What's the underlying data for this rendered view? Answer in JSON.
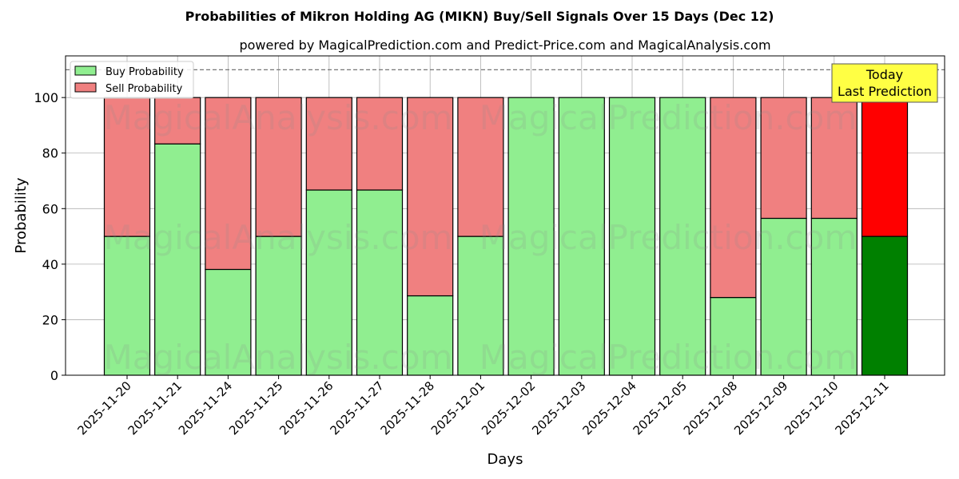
{
  "chart_data": {
    "type": "bar",
    "stacked": true,
    "title": "Probabilities of Mikron Holding AG (MIKN) Buy/Sell Signals Over 15 Days (Dec 12)",
    "subtitle": "powered by MagicalPrediction.com and Predict-Price.com and MagicalAnalysis.com",
    "xlabel": "Days",
    "ylabel": "Probability",
    "ylim": [
      0,
      115
    ],
    "yticks": [
      0,
      20,
      40,
      60,
      80,
      100
    ],
    "grid": true,
    "legend_position": "top-left",
    "reference_line": 110,
    "categories": [
      "2025-11-20",
      "2025-11-21",
      "2025-11-24",
      "2025-11-25",
      "2025-11-26",
      "2025-11-27",
      "2025-11-28",
      "2025-12-01",
      "2025-12-02",
      "2025-12-03",
      "2025-12-04",
      "2025-12-05",
      "2025-12-08",
      "2025-12-09",
      "2025-12-10",
      "2025-12-11"
    ],
    "series": [
      {
        "name": "Buy Probability",
        "color": "#90ee90",
        "values": [
          50,
          83.3,
          38.1,
          50,
          66.7,
          66.7,
          28.6,
          50,
          100,
          100,
          100,
          100,
          28,
          56.5,
          56.5,
          50
        ]
      },
      {
        "name": "Sell Probability",
        "color": "#f08080",
        "values": [
          50,
          16.7,
          61.9,
          50,
          33.3,
          33.3,
          71.4,
          50,
          0,
          0,
          0,
          0,
          72,
          43.5,
          43.5,
          50
        ]
      }
    ],
    "highlight": {
      "buy_color": "#008000",
      "sell_color": "#ff0000"
    },
    "annotation": {
      "line1": "Today",
      "line2": "Last Prediction",
      "color": "#ffff44"
    },
    "watermarks": [
      "MagicalAnalysis.com",
      "MagicalPrediction.com"
    ]
  }
}
